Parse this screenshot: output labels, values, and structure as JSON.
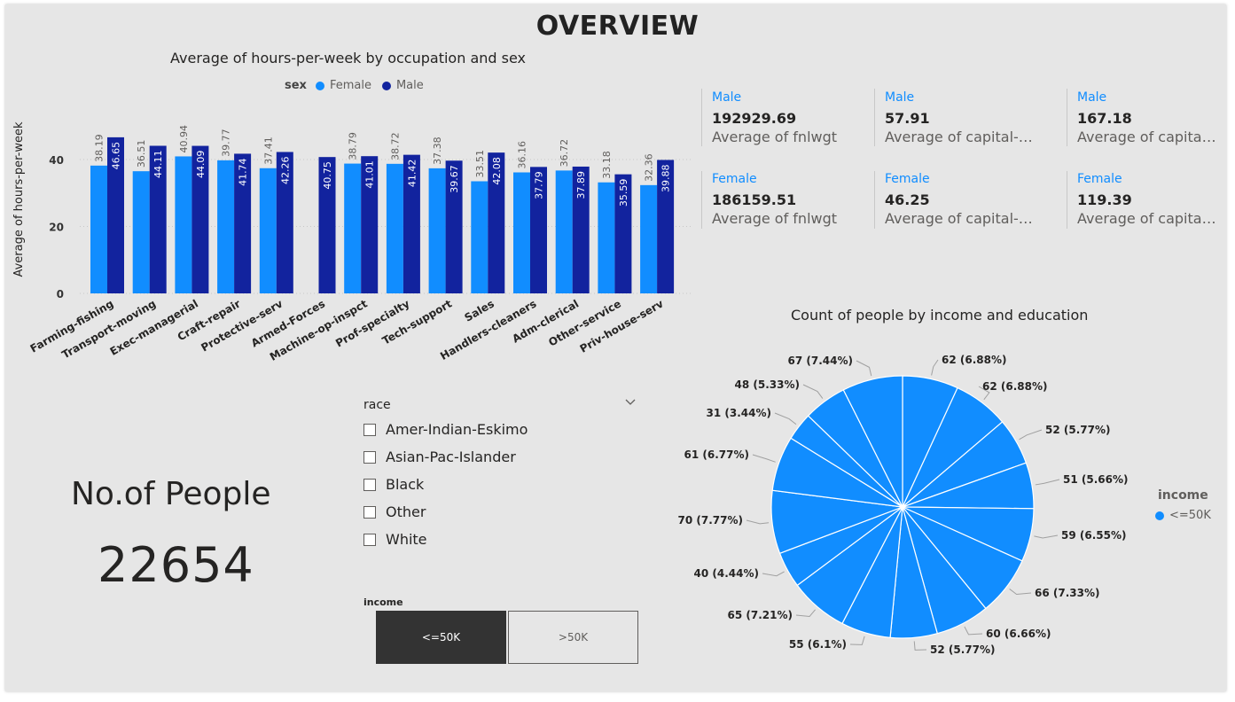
{
  "page_title": "OVERVIEW",
  "colors": {
    "female": "#118dff",
    "male": "#12239e",
    "pie": "#118dff"
  },
  "chart_data": [
    {
      "type": "bar",
      "title": "Average of hours-per-week by occupation and sex",
      "ylabel": "Average of hours-per-week",
      "ylim": [
        0,
        50
      ],
      "yticks": [
        "0",
        "20",
        "40"
      ],
      "legend_title": "sex",
      "categories": [
        "Farming-fishing",
        "Transport-moving",
        "Exec-managerial",
        "Craft-repair",
        "Protective-serv",
        "Armed-Forces",
        "Machine-op-inspct",
        "Prof-specialty",
        "Tech-support",
        "Sales",
        "Handlers-cleaners",
        "Adm-clerical",
        "Other-service",
        "Priv-house-serv"
      ],
      "series": [
        {
          "name": "Female",
          "values": [
            38.19,
            36.51,
            40.94,
            39.77,
            37.41,
            null,
            38.79,
            38.72,
            37.38,
            33.51,
            36.16,
            36.72,
            33.18,
            32.36
          ],
          "labels": [
            "38.19",
            "36.51",
            "40.94",
            "39.77",
            "37.41",
            "",
            "38.79",
            "38.72",
            "37.38",
            "33.51",
            "36.16",
            "36.72",
            "33.18",
            "32.36"
          ]
        },
        {
          "name": "Male",
          "values": [
            46.65,
            44.11,
            44.09,
            41.74,
            42.26,
            40.75,
            41.01,
            41.42,
            39.67,
            42.08,
            37.79,
            37.89,
            35.59,
            39.88
          ],
          "labels": [
            "46.65",
            "44.11",
            "44.09",
            "41.74",
            "42.26",
            "40.75",
            "41.01",
            "41.42",
            "39.67",
            "42.08",
            "37.79",
            "37.89",
            "35.59",
            "39.88"
          ]
        }
      ]
    },
    {
      "type": "pie",
      "title": "Count of people by income and education",
      "legend_title": "income",
      "legend_items": [
        "<=50K"
      ],
      "values": [
        62,
        62,
        52,
        51,
        59,
        66,
        60,
        52,
        55,
        65,
        40,
        70,
        61,
        31,
        48,
        67
      ],
      "labels": [
        "62 (6.88%)",
        "62 (6.88%)",
        "52 (5.77%)",
        "51 (5.66%)",
        "59 (6.55%)",
        "66 (7.33%)",
        "60 (6.66%)",
        "52 (5.77%)",
        "55 (6.1%)",
        "65 (7.21%)",
        "40 (4.44%)",
        "70 (7.77%)",
        "61 (6.77%)",
        "31 (3.44%)",
        "48 (5.33%)",
        "67 (7.44%)"
      ]
    }
  ],
  "cards": [
    {
      "category": "Male",
      "value": "192929.69",
      "label": "Average of fnlwgt"
    },
    {
      "category": "Male",
      "value": "57.91",
      "label": "Average of capital-loss"
    },
    {
      "category": "Male",
      "value": "167.18",
      "label": "Average of capital-gain"
    },
    {
      "category": "Female",
      "value": "186159.51",
      "label": "Average of fnlwgt"
    },
    {
      "category": "Female",
      "value": "46.25",
      "label": "Average of capital-loss"
    },
    {
      "category": "Female",
      "value": "119.39",
      "label": "Average of capital-gain"
    }
  ],
  "kpi": {
    "label": "No.of People",
    "value": "22654"
  },
  "race_slicer": {
    "title": "race",
    "items": [
      "Amer-Indian-Eskimo",
      "Asian-Pac-Islander",
      "Black",
      "Other",
      "White"
    ]
  },
  "income_slicer": {
    "title": "income",
    "options": [
      "<=50K",
      ">50K"
    ],
    "selected": "<=50K"
  }
}
